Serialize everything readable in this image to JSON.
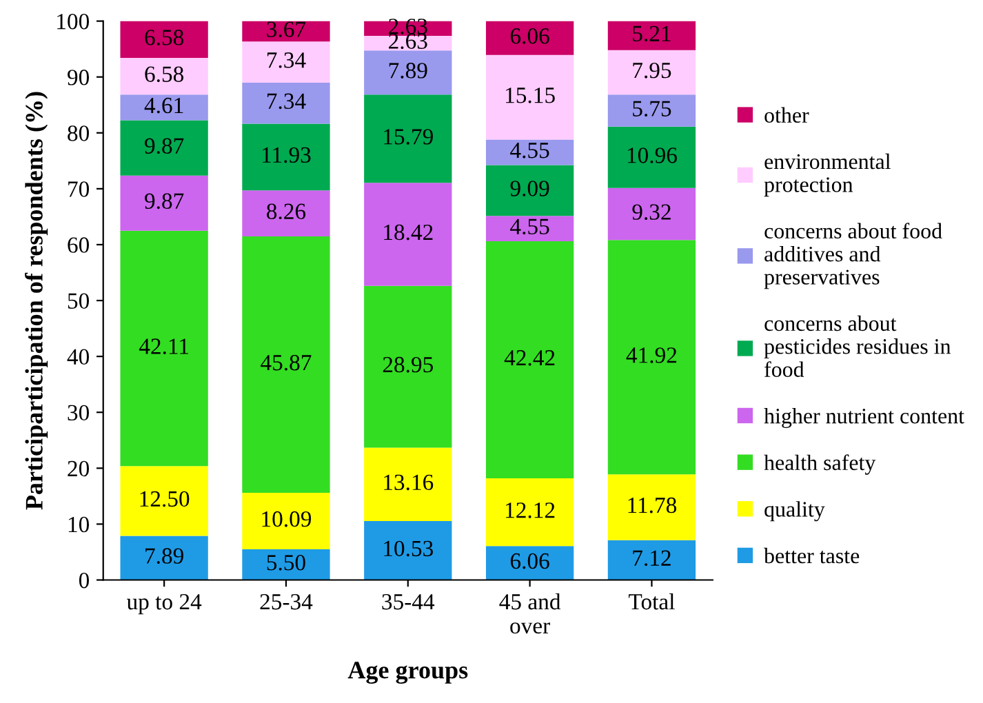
{
  "chart_data": {
    "type": "bar",
    "stacked": true,
    "ylabel": "Participarticipation of respondents (%)",
    "xlabel": "Age groups",
    "categories": [
      "up to 24",
      "25-34",
      "35-44",
      "45 and\nover",
      "Total"
    ],
    "ylim": [
      0,
      100
    ],
    "yticks": [
      0,
      10,
      20,
      30,
      40,
      50,
      60,
      70,
      80,
      90,
      100
    ],
    "grid": false,
    "legend": "right",
    "data_labels": true,
    "series": [
      {
        "name": "better taste",
        "color": "#1f9be6",
        "values": [
          7.89,
          5.5,
          10.53,
          6.06,
          7.12
        ],
        "value_labels": [
          "7.89",
          "5.50",
          "10.53",
          "6.06",
          "7.12"
        ]
      },
      {
        "name": "quality",
        "color": "#ffff00",
        "values": [
          12.5,
          10.09,
          13.16,
          12.12,
          11.78
        ],
        "value_labels": [
          "12.50",
          "10.09",
          "13.16",
          "12.12",
          "11.78"
        ]
      },
      {
        "name": "health safety",
        "color": "#33dd22",
        "values": [
          42.11,
          45.87,
          28.95,
          42.42,
          41.92
        ],
        "value_labels": [
          "42.11",
          "45.87",
          "28.95",
          "42.42",
          "41.92"
        ]
      },
      {
        "name": "higher nutrient content",
        "color": "#cc66ee",
        "values": [
          9.87,
          8.26,
          18.42,
          4.55,
          9.32
        ],
        "value_labels": [
          "9.87",
          "8.26",
          "18.42",
          "4.55",
          "9.32"
        ]
      },
      {
        "name": "concerns about\npesticides residues in\nfood",
        "color": "#00aa50",
        "values": [
          9.87,
          11.93,
          15.79,
          9.09,
          10.96
        ],
        "value_labels": [
          "9.87",
          "11.93",
          "15.79",
          "9.09",
          "10.96"
        ]
      },
      {
        "name": "concerns about food\nadditives and\npreservatives",
        "color": "#9999ee",
        "values": [
          4.61,
          7.34,
          7.89,
          4.55,
          5.75
        ],
        "value_labels": [
          "4.61",
          "7.34",
          "7.89",
          "4.55",
          "5.75"
        ]
      },
      {
        "name": "environmental\nprotection",
        "color": "#ffccff",
        "values": [
          6.58,
          7.34,
          2.63,
          15.15,
          7.95
        ],
        "value_labels": [
          "6.58",
          "7.34",
          "2.63",
          "15.15",
          "7.95"
        ]
      },
      {
        "name": "other",
        "color": "#cc0066",
        "values": [
          6.58,
          3.67,
          2.63,
          6.06,
          5.21
        ],
        "value_labels": [
          "6.58",
          "3.67",
          "2.63",
          "6.06",
          "5.21"
        ]
      }
    ]
  }
}
